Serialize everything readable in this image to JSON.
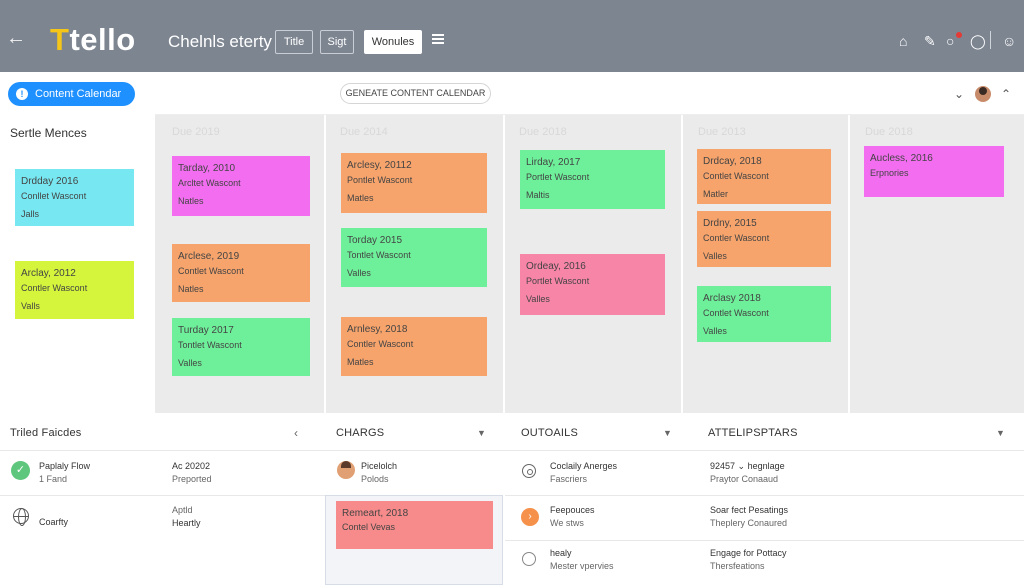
{
  "header": {
    "back_icon": "arrow-left-icon",
    "logo_first": "T",
    "logo_rest": "tello",
    "board_title": "Chelnls eterty",
    "buttons": [
      "Title",
      "Sigt",
      "Wonules"
    ],
    "menu_icon": "hamburger-icon",
    "right_icons": [
      "home-icon",
      "pencil-icon",
      "bell-icon",
      "user-icon"
    ]
  },
  "sidebar": {
    "button_label": "Content Calendar",
    "heading": "Sertle Mences",
    "cards": [
      {
        "line1": "Drdday 2016",
        "line2": "Conllet Wascont",
        "line3": "Jalls",
        "color": "#77e8f2"
      },
      {
        "line1": "Arclay, 2012",
        "line2": "Contler Wascont",
        "line3": "Valls",
        "color": "#d4f53c"
      }
    ]
  },
  "toolbar": {
    "generate_label": "GENEATE CONTENT CALENDAR"
  },
  "columns": [
    {
      "header": "Due 2019",
      "cards": [
        {
          "line1": "Tarday, 2010",
          "line2": "Arcltet Wascont",
          "line3": "Natles",
          "color": "#f26df0"
        },
        {
          "line1": "Arclese, 2019",
          "line2": "Contlet Wascont",
          "line3": "Natles",
          "color": "#f7a46c"
        },
        {
          "line1": "Turday 2017",
          "line2": "Tontlet Wascont",
          "line3": "Valles",
          "color": "#6ef09a"
        }
      ]
    },
    {
      "header": "Due 2014",
      "cards": [
        {
          "line1": "Arclesy, 20112",
          "line2": "Pontlet Wascont",
          "line3": "Matles",
          "color": "#f7a46c"
        },
        {
          "line1": "Torday 2015",
          "line2": "Tontlet Wascont",
          "line3": "Valles",
          "color": "#6ef09a"
        },
        {
          "line1": "Arnlesy, 2018",
          "line2": "Contler Wascont",
          "line3": "Matles",
          "color": "#f7a46c"
        }
      ]
    },
    {
      "header": "Due 2018",
      "cards": [
        {
          "line1": "Lirday, 2017",
          "line2": "Portlet Wascont",
          "line3": "Maltis",
          "color": "#6ef09a"
        },
        {
          "line1": "Ordeay, 2016",
          "line2": "Portlet Wascont",
          "line3": "Valles",
          "color": "#f785a8"
        }
      ]
    },
    {
      "header": "Due 2013",
      "cards": [
        {
          "line1": "Drdcay, 2018",
          "line2": "Contlet Wascont",
          "line3": "Matler",
          "color": "#f7a46c"
        },
        {
          "line1": "Drdny, 2015",
          "line2": "Contler Wascont",
          "line3": "Valles",
          "color": "#f7a46c"
        },
        {
          "line1": "Arclasy 2018",
          "line2": "Contlet Wascont",
          "line3": "Valles",
          "color": "#6ef09a"
        }
      ]
    },
    {
      "header": "Due 2018",
      "cards": [
        {
          "line1": "Aucless, 2016",
          "line2": "Erpnories",
          "line3": "",
          "color": "#f26df0"
        }
      ]
    }
  ],
  "bottom": {
    "sections": [
      {
        "title": "Triled Faicdes"
      },
      {
        "title": "CHARGS"
      },
      {
        "title": "OUTOAILS"
      },
      {
        "title": "ATTELIPSPTARS"
      }
    ],
    "tracked": [
      {
        "name": "Paplaly Flow",
        "sub": "1 Fand",
        "meta": "Ac 20202",
        "meta_sub": "Preported"
      },
      {
        "name": "Coarfty",
        "sub": "",
        "meta": "Aptld",
        "meta_sub": "Heartly"
      }
    ],
    "charges": {
      "person_name": "Picelolch",
      "person_sub": "Polods",
      "card_line1": "Remeart, 2018",
      "card_line2": "Contel Vevas",
      "card_color": "#f78a8a"
    },
    "outcalls": [
      {
        "name": "Coclaily Anerges",
        "sub": "Fascriers"
      },
      {
        "name": "Feepouces",
        "sub": "We stws"
      },
      {
        "name": "healy",
        "sub": "Mester vpervies"
      }
    ],
    "attelips": [
      {
        "name": "92457 ⌄ hegnlage",
        "sub": "Praytor Conaaud"
      },
      {
        "name": "Soar fect Pesatings",
        "sub": "Theplery Conaured"
      },
      {
        "name": "Engage for Pottacy",
        "sub": "Thersfeations"
      }
    ]
  }
}
